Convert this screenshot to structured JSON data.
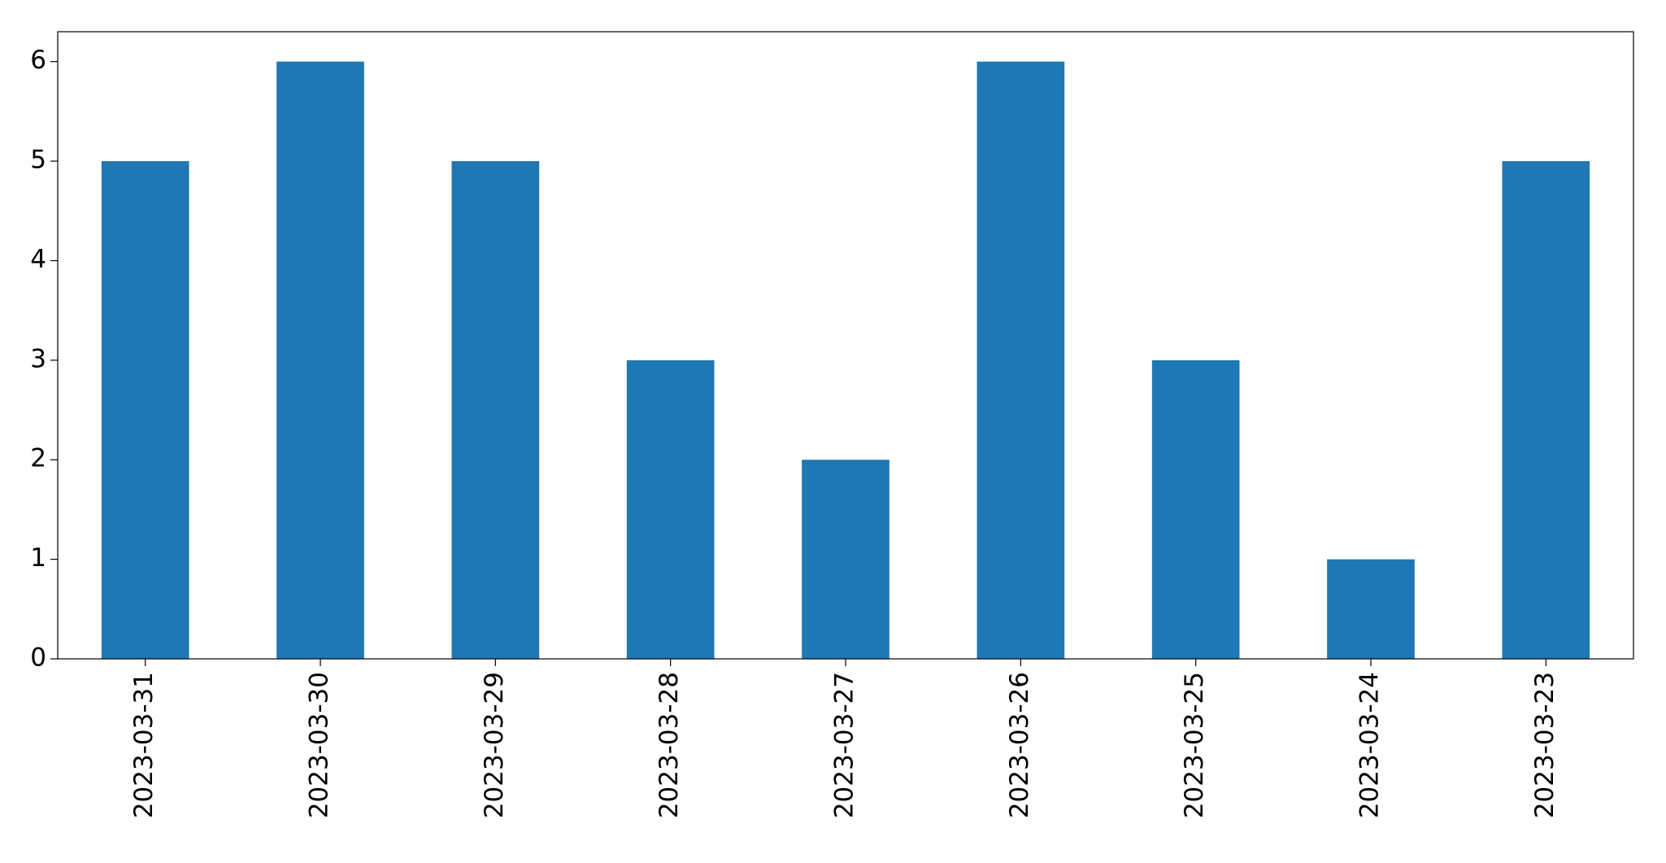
{
  "chart_data": {
    "type": "bar",
    "categories": [
      "2023-03-31",
      "2023-03-30",
      "2023-03-29",
      "2023-03-28",
      "2023-03-27",
      "2023-03-26",
      "2023-03-25",
      "2023-03-24",
      "2023-03-23"
    ],
    "values": [
      5,
      6,
      5,
      3,
      2,
      6,
      3,
      1,
      5
    ],
    "color": "#1f77b4",
    "ylim": [
      0,
      6.3
    ],
    "yticks": [
      0,
      1,
      2,
      3,
      4,
      5,
      6
    ],
    "grid": false
  }
}
